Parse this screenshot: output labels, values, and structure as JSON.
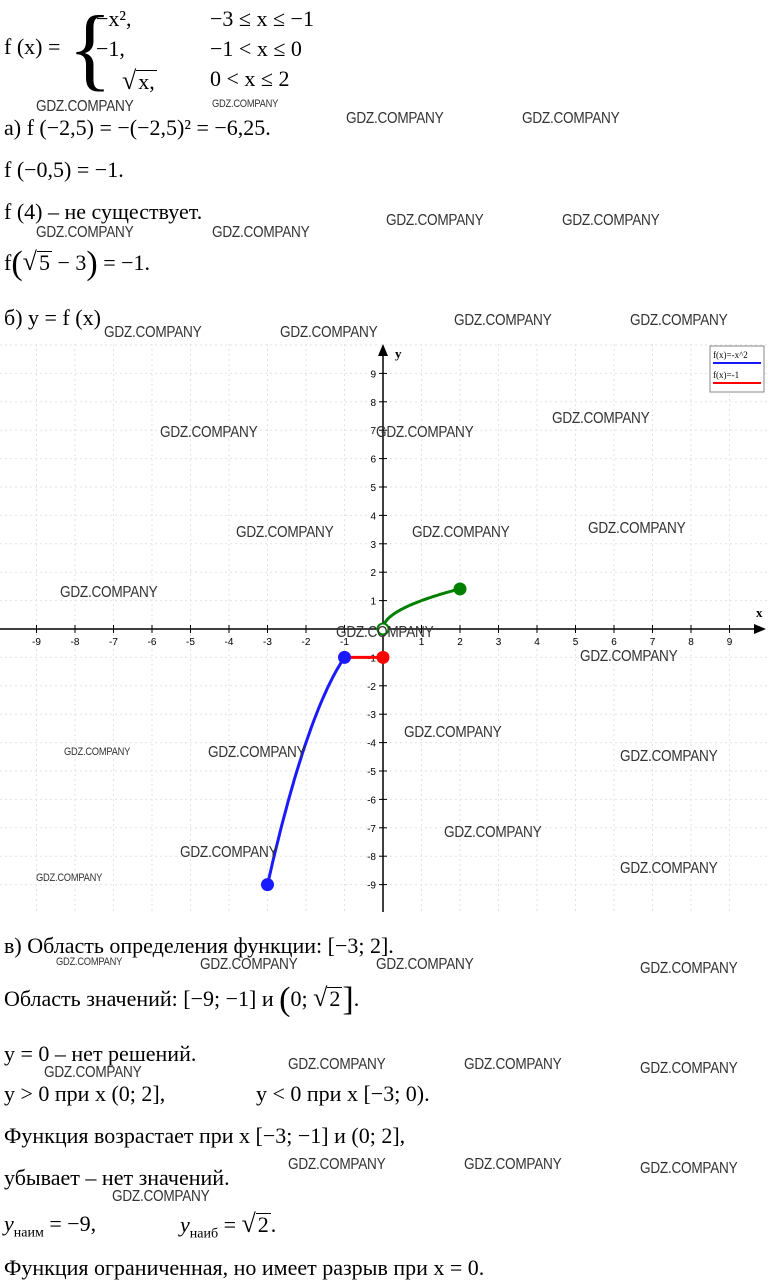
{
  "piecewise": {
    "fname": "f (x) =",
    "rows": [
      {
        "expr": "−x², ",
        "cond": "−3 ≤ x ≤ −1"
      },
      {
        "expr": "−1,",
        "cond": "−1 < x ≤ 0"
      },
      {
        "expr": "x,",
        "cond": "0 < x ≤ 2"
      }
    ]
  },
  "part_a": {
    "l1": "а) f (−2,5) = −(−2,5)² = −6,25.",
    "l2": "f (−0,5) = −1.",
    "l3": "f (4) – не существует.",
    "l4_pre": "f",
    "l4_inner": "5",
    "l4_mid": "− 3",
    "l4_post": "= −1."
  },
  "part_b": {
    "label": "б) y = f (x)"
  },
  "part_c": {
    "l1": "в) Область определения функции: [−3; 2].",
    "l2_pre": "Область значений: [−9; −1] и",
    "l2_inner_pre": "0;",
    "l2_inner_sqrt": "2",
    "l2_post": ".",
    "l3": "y = 0 – нет решений.",
    "l4a": "y > 0 при x (0; 2],",
    "l4b": "y < 0 при x [−3; 0).",
    "l5": "Функция возрастает при x [−3; −1] и (0; 2],",
    "l6": "убывает – нет значений.",
    "l7a": "y",
    "l7a_sub": "наим",
    "l7a_val": "= −9,",
    "l7b": "y",
    "l7b_sub": "наиб",
    "l7b_eq": "=",
    "l7b_sqrt": "2",
    "l7b_end": ".",
    "l8": "Функция ограниченная, но имеет разрыв при x = 0."
  },
  "chart_data": {
    "type": "line",
    "xlim": [
      -9,
      9
    ],
    "ylim": [
      -9,
      9
    ],
    "xlabel": "x",
    "ylabel": "y",
    "xticks": [
      -9,
      -8,
      -7,
      -6,
      -5,
      -4,
      -3,
      -2,
      -1,
      1,
      2,
      3,
      4,
      5,
      6,
      7,
      8,
      9
    ],
    "yticks": [
      -9,
      -8,
      -7,
      -6,
      -5,
      -4,
      -3,
      -2,
      -1,
      1,
      2,
      3,
      4,
      5,
      6,
      7,
      8,
      9
    ],
    "grid": true,
    "legend": [
      "f(x)=-x^2",
      "f(x)=-1"
    ],
    "legend_placement": "top-right",
    "series": [
      {
        "name": "f(x)=-x^2",
        "color": "#1a1aff",
        "domain": [
          -3,
          -1
        ]
      },
      {
        "name": "f(x)=-1",
        "color": "#ff0000",
        "domain": [
          -1,
          0
        ]
      },
      {
        "color": "#008000",
        "domain": [
          0,
          2
        ]
      }
    ],
    "points": [
      {
        "x": -3,
        "y": -9,
        "color": "#1a1aff",
        "filled": true
      },
      {
        "x": -1,
        "y": -1,
        "color": "#1a1aff",
        "filled": true
      },
      {
        "x": 0,
        "y": -1,
        "color": "#ff0000",
        "filled": true
      },
      {
        "x": 0,
        "y": 0,
        "color": "#008000",
        "filled": false
      },
      {
        "x": 2,
        "y": 1.41,
        "color": "#008000",
        "filled": true
      }
    ]
  },
  "watermark": "GDZ.COMPANY"
}
